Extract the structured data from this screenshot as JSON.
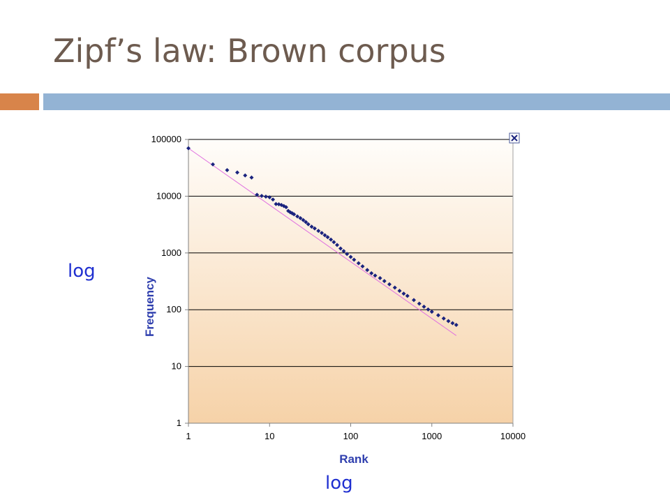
{
  "slide": {
    "title": "Zipf’s law: Brown corpus",
    "y_annotation": "log",
    "x_annotation": "log",
    "colors": {
      "title": "#6d5b4f",
      "accent_orange": "#d8844a",
      "accent_blue": "#93b3d4",
      "annotation": "#1f2fd0"
    }
  },
  "chart_data": {
    "type": "scatter",
    "xlabel": "Rank",
    "ylabel": "Frequency",
    "xscale": "log",
    "yscale": "log",
    "xlim": [
      1,
      10000
    ],
    "ylim": [
      1,
      100000
    ],
    "x_ticks": [
      "1",
      "10",
      "100",
      "1000",
      "10000"
    ],
    "y_ticks": [
      "1",
      "10",
      "100",
      "1000",
      "10000",
      "100000"
    ],
    "grid": "horizontal",
    "background": "gradient white to peach",
    "close_icon": "close-icon",
    "marker_color": "#1a237e",
    "trend_color": "#e070e0",
    "series": [
      {
        "x": [
          1,
          2,
          3,
          4,
          5,
          6,
          7,
          8,
          9,
          10,
          11,
          12,
          13,
          14,
          15,
          16,
          17,
          18,
          19,
          20,
          22,
          24,
          26,
          28,
          30,
          33,
          36,
          40,
          44,
          48,
          52,
          57,
          62,
          68,
          75,
          82,
          90,
          100,
          110,
          125,
          140,
          160,
          180,
          200,
          230,
          260,
          300,
          350,
          400,
          450,
          500,
          600,
          700,
          800,
          900,
          1000,
          1200,
          1400,
          1600,
          1800,
          2000
        ],
        "y": [
          69971,
          36411,
          28852,
          26149,
          23237,
          21341,
          10595,
          10099,
          9816,
          9543,
          8760,
          7289,
          7200,
          7000,
          6700,
          6400,
          5500,
          5200,
          5000,
          4800,
          4400,
          4100,
          3800,
          3500,
          3200,
          2900,
          2700,
          2450,
          2250,
          2050,
          1900,
          1720,
          1550,
          1380,
          1200,
          1080,
          960,
          850,
          760,
          660,
          580,
          500,
          440,
          400,
          360,
          320,
          280,
          245,
          215,
          192,
          175,
          148,
          128,
          113,
          101,
          92,
          80,
          70,
          63,
          58,
          54
        ]
      }
    ],
    "trendline": {
      "x": [
        1,
        2000
      ],
      "y": [
        69971,
        35
      ]
    }
  }
}
